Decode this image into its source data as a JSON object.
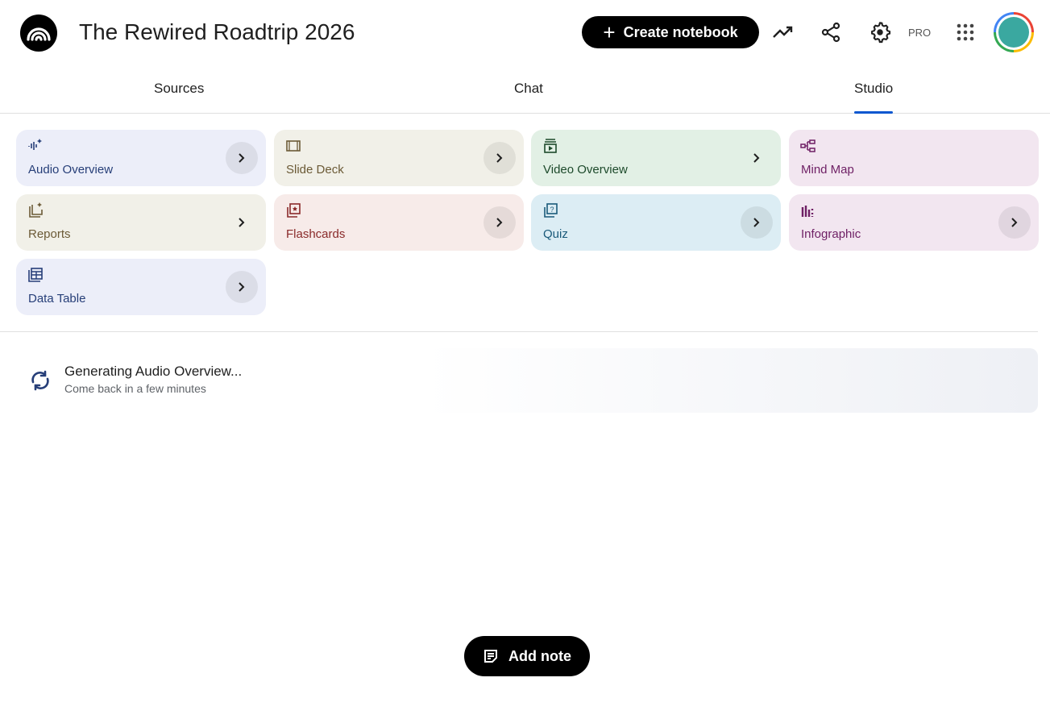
{
  "header": {
    "title": "The Rewired Roadtrip 2026",
    "create_label": "Create notebook",
    "pro_label": "PRO"
  },
  "tabs": [
    {
      "label": "Sources"
    },
    {
      "label": "Chat"
    },
    {
      "label": "Studio",
      "active": true
    }
  ],
  "studio_cards": [
    {
      "label": "Audio Overview",
      "icon": "audio-waveform-sparkle",
      "bg": "#eceef9",
      "fg": "#263e78"
    },
    {
      "label": "Slide Deck",
      "icon": "slides",
      "bg": "#f1f0e8",
      "fg": "#6b5a36"
    },
    {
      "label": "Video Overview",
      "icon": "video-stack",
      "bg": "#e2f0e5",
      "fg": "#1d4a2b"
    },
    {
      "label": "Mind Map",
      "icon": "mind-map",
      "bg": "#f2e6f0",
      "fg": "#6e1f64"
    },
    {
      "label": "Reports",
      "icon": "reports-sparkle",
      "bg": "#f1f0e8",
      "fg": "#6b5a36"
    },
    {
      "label": "Flashcards",
      "icon": "flashcards",
      "bg": "#f7ebe9",
      "fg": "#8a2a2a"
    },
    {
      "label": "Quiz",
      "icon": "quiz",
      "bg": "#dcedf4",
      "fg": "#1a5a7a"
    },
    {
      "label": "Infographic",
      "icon": "infographic",
      "bg": "#f2e6f0",
      "fg": "#6e1f64"
    },
    {
      "label": "Data Table",
      "icon": "table",
      "bg": "#eceef9",
      "fg": "#263e78"
    }
  ],
  "generating": {
    "title": "Generating Audio Overview...",
    "subtitle": "Come back in a few minutes"
  },
  "add_note_label": "Add note"
}
